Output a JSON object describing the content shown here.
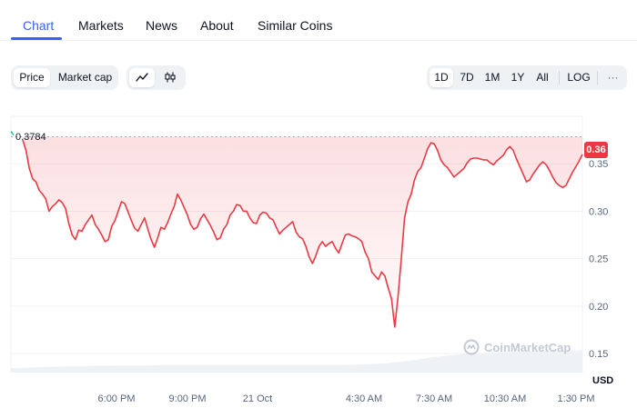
{
  "tabs": [
    {
      "label": "Chart",
      "active": true
    },
    {
      "label": "Markets"
    },
    {
      "label": "News"
    },
    {
      "label": "About"
    },
    {
      "label": "Similar Coins"
    }
  ],
  "toolbar": {
    "metric": {
      "price": "Price",
      "market_cap": "Market cap",
      "selected": "Price"
    },
    "chart_style": {
      "line_icon": "line-chart-icon",
      "candle_icon": "candlestick-icon",
      "selected": "line"
    },
    "ranges": [
      "1D",
      "7D",
      "1M",
      "1Y",
      "All"
    ],
    "selected_range": "1D",
    "log_label": "LOG",
    "more_label": "···"
  },
  "colors": {
    "accent": "#3861fb",
    "line": "#ea3943",
    "area": "#ea3943",
    "volume": "#eff2f5"
  },
  "chart": {
    "start_price_label": "0.3784",
    "current_price_label": "0.36",
    "currency_label": "USD",
    "watermark": "CoinMarketCap"
  },
  "chart_data": {
    "type": "line",
    "currency": "USD",
    "ylim": [
      0.13,
      0.4
    ],
    "yticks": [
      0.15,
      0.2,
      0.25,
      0.3,
      0.35
    ],
    "ytick_labels": [
      "0.15",
      "0.20",
      "0.25",
      "0.30",
      "0.35"
    ],
    "xtick_labels": [
      "6:00 PM",
      "9:00 PM",
      "21 Oct",
      "4:30 AM",
      "7:30 AM",
      "10:30 AM",
      "1:30 PM"
    ],
    "start_reference": 0.3784,
    "last_value": 0.36,
    "series": [
      {
        "values": [
          0.375,
          0.364,
          0.345,
          0.334,
          0.331,
          0.322,
          0.318,
          0.313,
          0.3,
          0.305,
          0.308,
          0.312,
          0.309,
          0.303,
          0.287,
          0.275,
          0.27,
          0.28,
          0.279,
          0.286,
          0.291,
          0.296,
          0.286,
          0.281,
          0.275,
          0.268,
          0.27,
          0.284,
          0.29,
          0.3,
          0.31,
          0.308,
          0.299,
          0.29,
          0.282,
          0.279,
          0.286,
          0.293,
          0.281,
          0.27,
          0.262,
          0.272,
          0.283,
          0.281,
          0.288,
          0.297,
          0.305,
          0.318,
          0.312,
          0.304,
          0.296,
          0.286,
          0.281,
          0.283,
          0.292,
          0.297,
          0.291,
          0.285,
          0.278,
          0.27,
          0.272,
          0.281,
          0.286,
          0.296,
          0.3,
          0.307,
          0.306,
          0.3,
          0.3,
          0.293,
          0.288,
          0.287,
          0.296,
          0.299,
          0.298,
          0.293,
          0.291,
          0.283,
          0.276,
          0.28,
          0.283,
          0.286,
          0.289,
          0.278,
          0.273,
          0.271,
          0.263,
          0.252,
          0.245,
          0.253,
          0.263,
          0.268,
          0.263,
          0.266,
          0.268,
          0.261,
          0.256,
          0.266,
          0.275,
          0.276,
          0.274,
          0.273,
          0.271,
          0.268,
          0.257,
          0.25,
          0.236,
          0.232,
          0.228,
          0.236,
          0.232,
          0.219,
          0.208,
          0.178,
          0.21,
          0.25,
          0.293,
          0.31,
          0.318,
          0.333,
          0.342,
          0.346,
          0.356,
          0.366,
          0.372,
          0.371,
          0.364,
          0.354,
          0.349,
          0.346,
          0.341,
          0.336,
          0.339,
          0.342,
          0.345,
          0.351,
          0.355,
          0.356,
          0.356,
          0.355,
          0.354,
          0.354,
          0.351,
          0.349,
          0.353,
          0.356,
          0.359,
          0.365,
          0.368,
          0.364,
          0.355,
          0.347,
          0.339,
          0.331,
          0.333,
          0.339,
          0.344,
          0.349,
          0.352,
          0.349,
          0.343,
          0.336,
          0.33,
          0.327,
          0.325,
          0.327,
          0.334,
          0.341,
          0.347,
          0.353,
          0.36
        ]
      }
    ],
    "volume": [
      0.1,
      0.11,
      0.12,
      0.13,
      0.14,
      0.14,
      0.15,
      0.15,
      0.16,
      0.16,
      0.16,
      0.17,
      0.17,
      0.17,
      0.17,
      0.17,
      0.17,
      0.17,
      0.17,
      0.17,
      0.17,
      0.17,
      0.17,
      0.17,
      0.17,
      0.18,
      0.19,
      0.21,
      0.24,
      0.28,
      0.33,
      0.37,
      0.4,
      0.42,
      0.44,
      0.45,
      0.46,
      0.47,
      0.48,
      0.48,
      0.49,
      0.5
    ]
  }
}
